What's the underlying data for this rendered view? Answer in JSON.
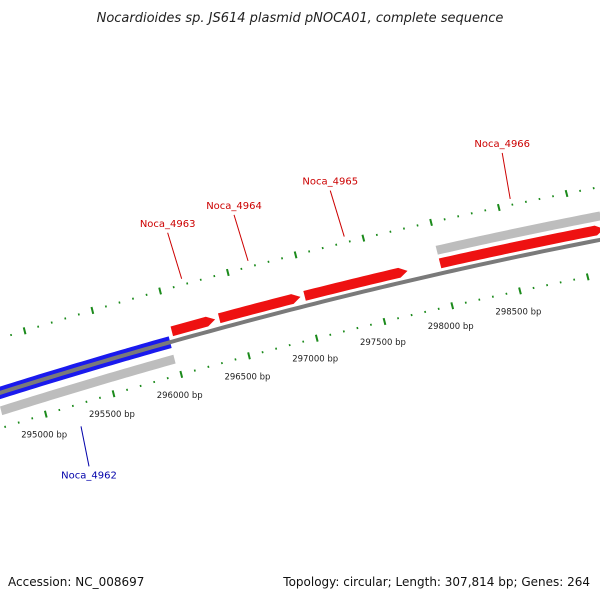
{
  "title": "Nocardioides sp. JS614 plasmid pNOCA01, complete sequence",
  "footer": {
    "accession": "Accession: NC_008697",
    "summary": "Topology: circular; Length: 307,814 bp; Genes: 264"
  },
  "colors": {
    "forward_gene": "#ee1111",
    "reverse_gene": "#1a1aee",
    "forward_label": "#cc0000",
    "reverse_label": "#0000aa",
    "backbone": "#7a7a7a",
    "gray_feature": "#bdbdbd",
    "ticks": "#1b8a1b"
  },
  "scale": {
    "unit": "bp",
    "labels": [
      {
        "bp": 295000,
        "text": "295000 bp"
      },
      {
        "bp": 295500,
        "text": "295500 bp"
      },
      {
        "bp": 296000,
        "text": "296000 bp"
      },
      {
        "bp": 296500,
        "text": "296500 bp"
      },
      {
        "bp": 297000,
        "text": "297000 bp"
      },
      {
        "bp": 297500,
        "text": "297500 bp"
      },
      {
        "bp": 298000,
        "text": "298000 bp"
      },
      {
        "bp": 298500,
        "text": "298500 bp"
      }
    ]
  },
  "genes": [
    {
      "name": "Noca_4962",
      "strand": "reverse",
      "start": 294700,
      "end": 295980
    },
    {
      "name": "Noca_4963",
      "strand": "forward",
      "start": 296010,
      "end": 296330
    },
    {
      "name": "Noca_4964",
      "strand": "forward",
      "start": 296360,
      "end": 296960
    },
    {
      "name": "Noca_4965",
      "strand": "forward",
      "start": 296990,
      "end": 297750
    },
    {
      "name": "Noca_4966",
      "strand": "forward",
      "start": 297990,
      "end": 299200
    }
  ],
  "gray_features": [
    {
      "strand": "reverse",
      "start": 294700,
      "end": 295980
    },
    {
      "strand": "forward",
      "start": 297990,
      "end": 299200
    }
  ]
}
